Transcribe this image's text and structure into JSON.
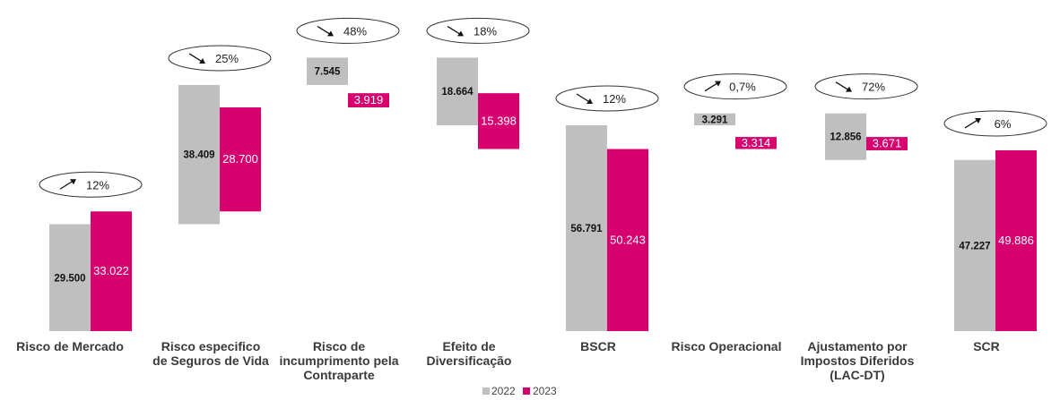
{
  "chart_data": {
    "type": "bar",
    "subtype": "waterfall",
    "categories": [
      "Risco de Mercado",
      "Risco especifico de Seguros de Vida",
      "Risco de incumprimento pela Contraparte",
      "Efeito de Diversificação",
      "BSCR",
      "Risco Operacional",
      "Ajustamento por Impostos Diferidos (LAC-DT)",
      "SCR"
    ],
    "series": [
      {
        "name": "2022",
        "color": "#bfbfbf",
        "values": [
          29500,
          38409,
          7545,
          18664,
          56791,
          3291,
          12856,
          47227
        ],
        "labels": [
          "29.500",
          "38.409",
          "7.545",
          "18.664",
          "56.791",
          "3.291",
          "12.856",
          "47.227"
        ]
      },
      {
        "name": "2023",
        "color": "#d6006f",
        "values": [
          33022,
          28700,
          3919,
          15398,
          50243,
          3314,
          3671,
          49886
        ],
        "labels": [
          "33.022",
          "28.700",
          "3.919",
          "15.398",
          "50.243",
          "3.314",
          "3.671",
          "49.886"
        ]
      }
    ],
    "changes": [
      {
        "label": "12%",
        "direction": "up"
      },
      {
        "label": "25%",
        "direction": "down"
      },
      {
        "label": "48%",
        "direction": "down"
      },
      {
        "label": "18%",
        "direction": "down"
      },
      {
        "label": "12%",
        "direction": "down"
      },
      {
        "label": "0,7%",
        "direction": "up"
      },
      {
        "label": "72%",
        "direction": "down"
      },
      {
        "label": "6%",
        "direction": "up"
      }
    ],
    "legend_position": "bottom-center",
    "grid": false
  }
}
